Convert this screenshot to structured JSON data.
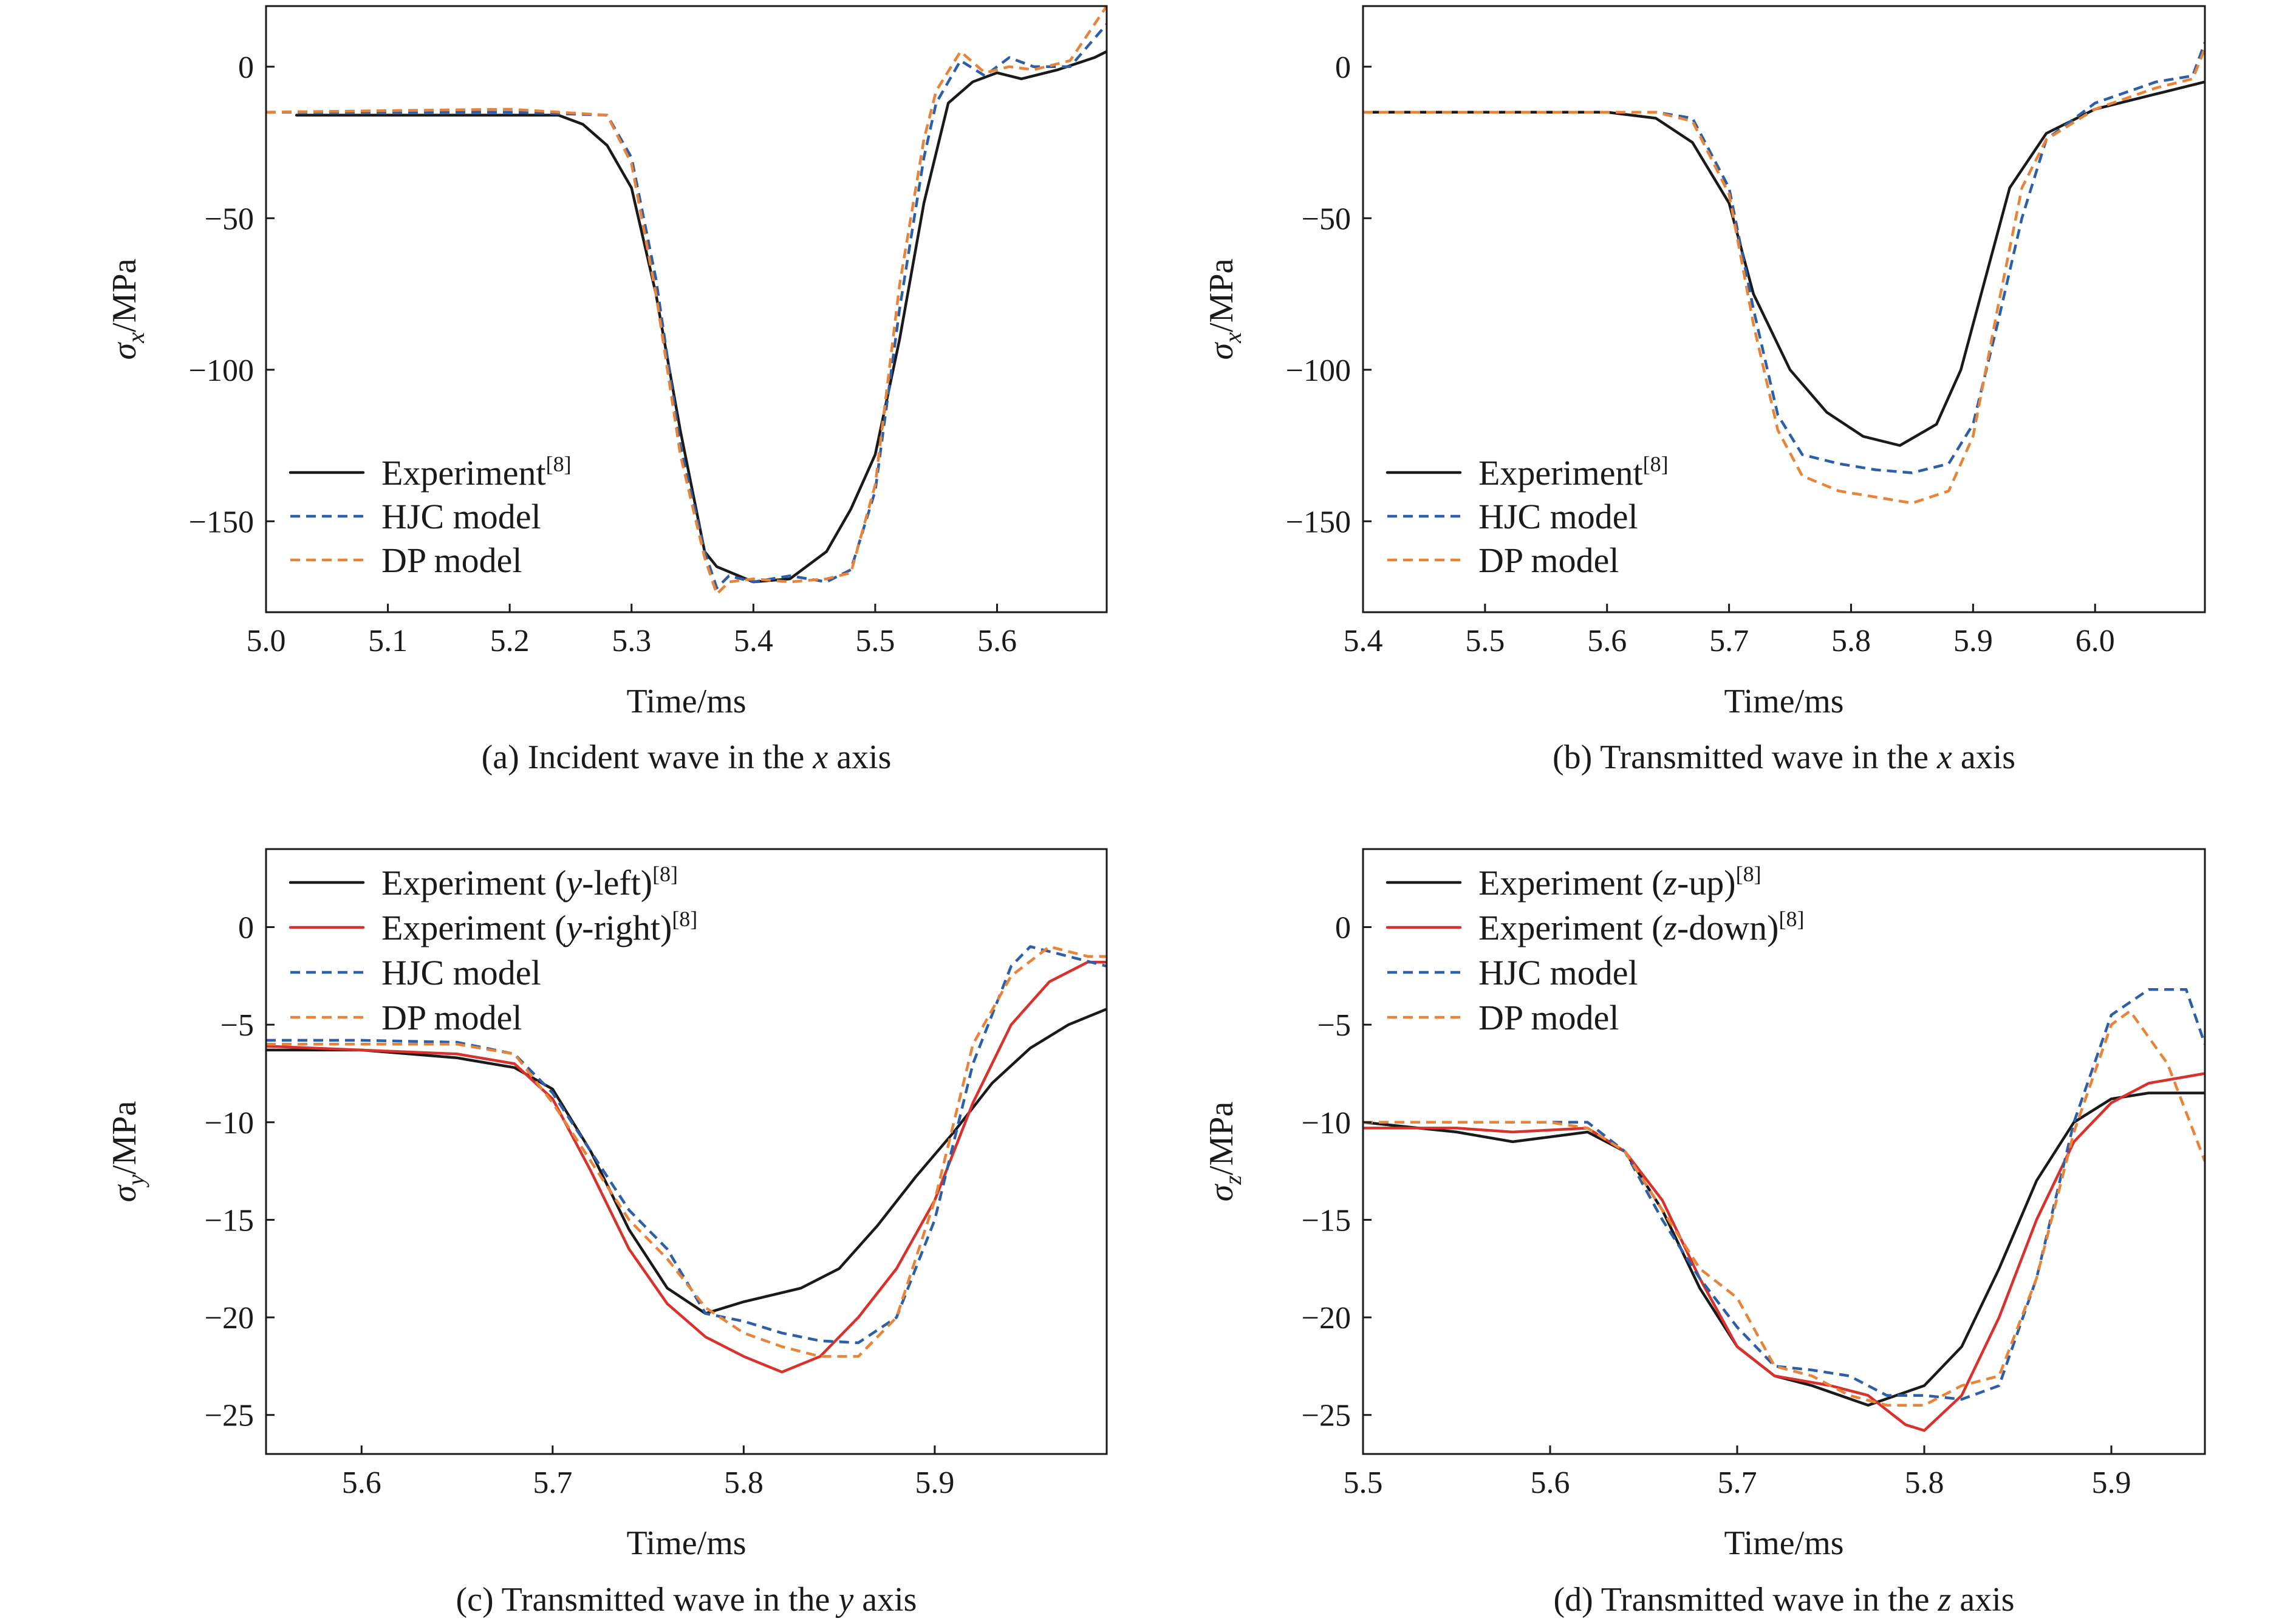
{
  "chart_data": [
    {
      "type": "line",
      "caption_parts": [
        {
          "text": "(a) Incident wave in the ",
          "italic": false
        },
        {
          "text": "x",
          "italic": true
        },
        {
          "text": " axis",
          "italic": false
        }
      ],
      "xlabel": "Time/ms",
      "ylabel": {
        "symbol": "σ",
        "sub": "x",
        "unit": "/MPa"
      },
      "xlim": [
        5.0,
        5.69
      ],
      "ylim": [
        -180,
        20
      ],
      "xticks": [
        "5.0",
        "5.1",
        "5.2",
        "5.3",
        "5.4",
        "5.5",
        "5.6"
      ],
      "yticks": [
        "0",
        "−50",
        "−100",
        "−150"
      ],
      "legend_position": "lower-left",
      "series": [
        {
          "name": "Experiment",
          "name_sup": "[8]",
          "color": "#1a1a1a",
          "dashed": false,
          "x": [
            5.025,
            5.24,
            5.26,
            5.28,
            5.3,
            5.32,
            5.34,
            5.36,
            5.37,
            5.4,
            5.43,
            5.46,
            5.48,
            5.5,
            5.52,
            5.54,
            5.56,
            5.58,
            5.6,
            5.62,
            5.65,
            5.68,
            5.69
          ],
          "y": [
            -16,
            -16,
            -19,
            -26,
            -40,
            -75,
            -120,
            -160,
            -165,
            -170,
            -169,
            -160,
            -146,
            -128,
            -90,
            -45,
            -12,
            -5,
            -2,
            -4,
            -1,
            3,
            5
          ]
        },
        {
          "name": "HJC model",
          "color": "#2c5fa8",
          "dashed": true,
          "x": [
            5.0,
            5.2,
            5.28,
            5.3,
            5.32,
            5.34,
            5.36,
            5.37,
            5.38,
            5.4,
            5.43,
            5.46,
            5.48,
            5.5,
            5.52,
            5.54,
            5.55,
            5.57,
            5.59,
            5.61,
            5.63,
            5.66,
            5.69
          ],
          "y": [
            -15,
            -15,
            -16,
            -30,
            -70,
            -125,
            -160,
            -172,
            -168,
            -170,
            -168,
            -170,
            -166,
            -140,
            -80,
            -30,
            -12,
            2,
            -3,
            3,
            0,
            0,
            14
          ]
        },
        {
          "name": "DP model",
          "color": "#e8843a",
          "dashed": true,
          "x": [
            5.0,
            5.2,
            5.28,
            5.3,
            5.32,
            5.34,
            5.36,
            5.37,
            5.38,
            5.4,
            5.43,
            5.46,
            5.48,
            5.5,
            5.52,
            5.54,
            5.55,
            5.57,
            5.59,
            5.61,
            5.63,
            5.66,
            5.69
          ],
          "y": [
            -15,
            -14,
            -16,
            -32,
            -75,
            -128,
            -162,
            -174,
            -170,
            -169,
            -170,
            -169,
            -167,
            -138,
            -72,
            -24,
            -8,
            5,
            -2,
            0,
            -1,
            2,
            20
          ]
        }
      ]
    },
    {
      "type": "line",
      "caption_parts": [
        {
          "text": "(b) Transmitted wave in the ",
          "italic": false
        },
        {
          "text": "x",
          "italic": true
        },
        {
          "text": " axis",
          "italic": false
        }
      ],
      "xlabel": "Time/ms",
      "ylabel": {
        "symbol": "σ",
        "sub": "x",
        "unit": "/MPa"
      },
      "xlim": [
        5.4,
        6.09
      ],
      "ylim": [
        -180,
        20
      ],
      "xticks": [
        "5.4",
        "5.5",
        "5.6",
        "5.7",
        "5.8",
        "5.9",
        "6.0"
      ],
      "yticks": [
        "0",
        "−50",
        "−100",
        "−150"
      ],
      "legend_position": "lower-left",
      "series": [
        {
          "name": "Experiment",
          "name_sup": "[8]",
          "color": "#1a1a1a",
          "dashed": false,
          "x": [
            5.4,
            5.6,
            5.64,
            5.67,
            5.7,
            5.72,
            5.75,
            5.78,
            5.81,
            5.84,
            5.87,
            5.89,
            5.91,
            5.93,
            5.96,
            6.0,
            6.05,
            6.09
          ],
          "y": [
            -15,
            -15,
            -17,
            -25,
            -45,
            -75,
            -100,
            -114,
            -122,
            -125,
            -118,
            -100,
            -70,
            -40,
            -22,
            -14,
            -9,
            -5
          ]
        },
        {
          "name": "HJC model",
          "color": "#2c5fa8",
          "dashed": true,
          "x": [
            5.4,
            5.64,
            5.67,
            5.7,
            5.72,
            5.74,
            5.76,
            5.79,
            5.82,
            5.85,
            5.88,
            5.9,
            5.92,
            5.94,
            5.96,
            6.0,
            6.05,
            6.08,
            6.09
          ],
          "y": [
            -15,
            -15,
            -17,
            -40,
            -80,
            -115,
            -128,
            -131,
            -133,
            -134,
            -131,
            -118,
            -85,
            -50,
            -24,
            -12,
            -5,
            -3,
            8
          ]
        },
        {
          "name": "DP model",
          "color": "#e8843a",
          "dashed": true,
          "x": [
            5.4,
            5.64,
            5.67,
            5.7,
            5.72,
            5.74,
            5.76,
            5.79,
            5.82,
            5.85,
            5.88,
            5.9,
            5.92,
            5.94,
            5.96,
            6.0,
            6.05,
            6.08,
            6.09
          ],
          "y": [
            -15,
            -15,
            -18,
            -42,
            -85,
            -120,
            -135,
            -140,
            -142,
            -144,
            -140,
            -122,
            -80,
            -40,
            -24,
            -14,
            -7,
            -4,
            6
          ]
        }
      ]
    },
    {
      "type": "line",
      "caption_parts": [
        {
          "text": "(c) Transmitted wave in the ",
          "italic": false
        },
        {
          "text": "y",
          "italic": true
        },
        {
          "text": " axis",
          "italic": false
        }
      ],
      "xlabel": "Time/ms",
      "ylabel": {
        "symbol": "σ",
        "sub": "y",
        "unit": "/MPa"
      },
      "xlim": [
        5.55,
        5.99
      ],
      "ylim": [
        -27,
        4
      ],
      "xticks": [
        "5.6",
        "5.7",
        "5.8",
        "5.9"
      ],
      "yticks": [
        "0",
        "−5",
        "−10",
        "−15",
        "−20",
        "−25"
      ],
      "legend_position": "upper-left",
      "series": [
        {
          "name_parts": [
            {
              "text": "Experiment (",
              "italic": false
            },
            {
              "text": "y",
              "italic": true
            },
            {
              "text": "-left)",
              "italic": false
            }
          ],
          "name_sup": "[8]",
          "color": "#1a1a1a",
          "dashed": false,
          "x": [
            5.55,
            5.6,
            5.65,
            5.68,
            5.7,
            5.72,
            5.74,
            5.76,
            5.78,
            5.8,
            5.83,
            5.85,
            5.87,
            5.89,
            5.91,
            5.93,
            5.95,
            5.97,
            5.99
          ],
          "y": [
            -6.3,
            -6.3,
            -6.7,
            -7.2,
            -8.3,
            -11.5,
            -15.5,
            -18.5,
            -19.8,
            -19.2,
            -18.5,
            -17.5,
            -15.3,
            -12.8,
            -10.5,
            -8.0,
            -6.2,
            -5.0,
            -4.2
          ]
        },
        {
          "name_parts": [
            {
              "text": "Experiment (",
              "italic": false
            },
            {
              "text": "y",
              "italic": true
            },
            {
              "text": "-right)",
              "italic": false
            }
          ],
          "name_sup": "[8]",
          "color": "#d9312b",
          "dashed": false,
          "x": [
            5.55,
            5.6,
            5.65,
            5.68,
            5.7,
            5.72,
            5.74,
            5.76,
            5.78,
            5.8,
            5.82,
            5.84,
            5.86,
            5.88,
            5.9,
            5.92,
            5.94,
            5.96,
            5.98,
            5.99
          ],
          "y": [
            -6.1,
            -6.3,
            -6.5,
            -7.0,
            -8.8,
            -12.5,
            -16.5,
            -19.3,
            -21.0,
            -22.0,
            -22.8,
            -22.0,
            -20.0,
            -17.5,
            -14.0,
            -9.0,
            -5.0,
            -2.8,
            -1.8,
            -1.8
          ]
        },
        {
          "name": "HJC model",
          "color": "#2c5fa8",
          "dashed": true,
          "x": [
            5.55,
            5.6,
            5.65,
            5.68,
            5.7,
            5.72,
            5.74,
            5.76,
            5.78,
            5.8,
            5.82,
            5.84,
            5.86,
            5.88,
            5.9,
            5.92,
            5.94,
            5.95,
            5.97,
            5.99
          ],
          "y": [
            -5.8,
            -5.8,
            -5.9,
            -6.5,
            -8.5,
            -11.5,
            -14.5,
            -16.5,
            -19.8,
            -20.2,
            -20.8,
            -21.2,
            -21.3,
            -20.0,
            -15.0,
            -7.0,
            -2.0,
            -1.0,
            -1.5,
            -2.0
          ]
        },
        {
          "name": "DP model",
          "color": "#e8843a",
          "dashed": true,
          "x": [
            5.55,
            5.6,
            5.65,
            5.68,
            5.7,
            5.72,
            5.74,
            5.76,
            5.78,
            5.8,
            5.82,
            5.84,
            5.86,
            5.88,
            5.9,
            5.92,
            5.94,
            5.96,
            5.98,
            5.99
          ],
          "y": [
            -6.0,
            -6.0,
            -6.0,
            -6.5,
            -9.0,
            -12.0,
            -15.0,
            -17.0,
            -19.5,
            -20.8,
            -21.5,
            -22.0,
            -22.0,
            -20.0,
            -14.0,
            -6.0,
            -2.5,
            -1.0,
            -1.5,
            -1.5
          ]
        }
      ]
    },
    {
      "type": "line",
      "caption_parts": [
        {
          "text": "(d) Transmitted wave in the ",
          "italic": false
        },
        {
          "text": "z",
          "italic": true
        },
        {
          "text": " axis",
          "italic": false
        }
      ],
      "xlabel": "Time/ms",
      "ylabel": {
        "symbol": "σ",
        "sub": "z",
        "unit": "/MPa"
      },
      "xlim": [
        5.5,
        5.95
      ],
      "ylim": [
        -27,
        4
      ],
      "xticks": [
        "5.5",
        "5.6",
        "5.7",
        "5.8",
        "5.9"
      ],
      "yticks": [
        "0",
        "−5",
        "−10",
        "−15",
        "−20",
        "−25"
      ],
      "legend_position": "upper-left",
      "series": [
        {
          "name_parts": [
            {
              "text": "Experiment (",
              "italic": false
            },
            {
              "text": "z",
              "italic": true
            },
            {
              "text": "-up)",
              "italic": false
            }
          ],
          "name_sup": "[8]",
          "color": "#1a1a1a",
          "dashed": false,
          "x": [
            5.5,
            5.55,
            5.58,
            5.62,
            5.64,
            5.66,
            5.68,
            5.7,
            5.72,
            5.74,
            5.77,
            5.8,
            5.82,
            5.84,
            5.86,
            5.88,
            5.9,
            5.92,
            5.95
          ],
          "y": [
            -10.0,
            -10.5,
            -11.0,
            -10.5,
            -11.5,
            -14.5,
            -18.5,
            -21.5,
            -23.0,
            -23.5,
            -24.5,
            -23.5,
            -21.5,
            -17.5,
            -13.0,
            -10.0,
            -8.8,
            -8.5,
            -8.5
          ]
        },
        {
          "name_parts": [
            {
              "text": "Experiment (",
              "italic": false
            },
            {
              "text": "z",
              "italic": true
            },
            {
              "text": "-down)",
              "italic": false
            }
          ],
          "name_sup": "[8]",
          "color": "#d9312b",
          "dashed": false,
          "x": [
            5.5,
            5.55,
            5.58,
            5.62,
            5.64,
            5.66,
            5.68,
            5.7,
            5.72,
            5.75,
            5.77,
            5.79,
            5.8,
            5.82,
            5.84,
            5.86,
            5.88,
            5.9,
            5.92,
            5.95
          ],
          "y": [
            -10.3,
            -10.3,
            -10.5,
            -10.3,
            -11.5,
            -14.0,
            -18.0,
            -21.5,
            -23.0,
            -23.5,
            -24.0,
            -25.5,
            -25.8,
            -24.0,
            -20.0,
            -15.0,
            -11.0,
            -9.0,
            -8.0,
            -7.5
          ]
        },
        {
          "name": "HJC model",
          "color": "#2c5fa8",
          "dashed": true,
          "x": [
            5.5,
            5.55,
            5.6,
            5.62,
            5.64,
            5.66,
            5.68,
            5.7,
            5.72,
            5.74,
            5.76,
            5.78,
            5.8,
            5.82,
            5.84,
            5.86,
            5.88,
            5.9,
            5.92,
            5.94,
            5.95
          ],
          "y": [
            -10.0,
            -10.0,
            -10.0,
            -10.0,
            -11.5,
            -15.0,
            -18.0,
            -20.5,
            -22.5,
            -22.7,
            -23.0,
            -24.0,
            -24.0,
            -24.2,
            -23.5,
            -18.0,
            -10.0,
            -4.5,
            -3.2,
            -3.2,
            -6.0
          ]
        },
        {
          "name": "DP model",
          "color": "#e8843a",
          "dashed": true,
          "x": [
            5.5,
            5.55,
            5.6,
            5.62,
            5.64,
            5.66,
            5.68,
            5.7,
            5.72,
            5.74,
            5.76,
            5.78,
            5.8,
            5.82,
            5.84,
            5.86,
            5.88,
            5.9,
            5.91,
            5.93,
            5.95
          ],
          "y": [
            -10.0,
            -10.0,
            -10.0,
            -10.3,
            -11.5,
            -14.5,
            -17.5,
            -19.0,
            -22.5,
            -23.0,
            -24.0,
            -24.5,
            -24.5,
            -23.5,
            -23.0,
            -18.0,
            -10.5,
            -5.0,
            -4.3,
            -7.0,
            -12.0
          ]
        }
      ]
    }
  ]
}
